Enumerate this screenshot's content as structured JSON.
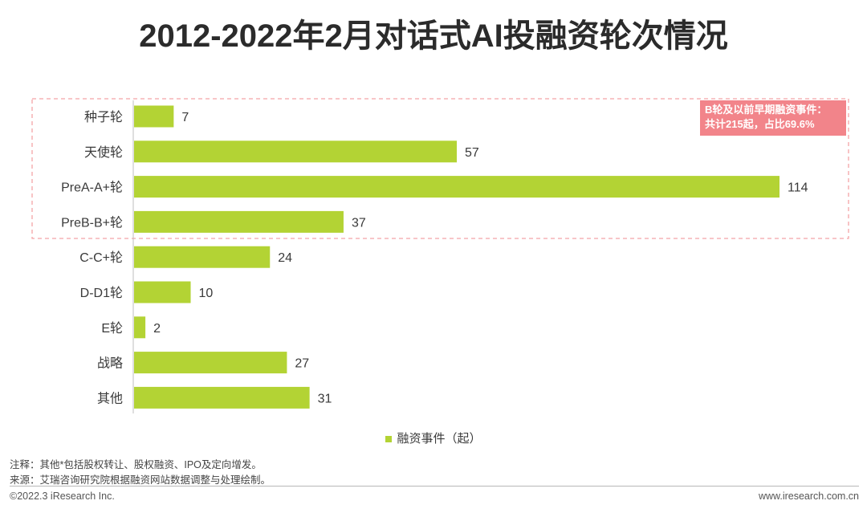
{
  "title": "2012-2022年2月对话式AI投融资轮次情况",
  "chart_data": {
    "type": "bar",
    "orientation": "horizontal",
    "categories": [
      "种子轮",
      "天使轮",
      "PreA-A+轮",
      "PreB-B+轮",
      "C-C+轮",
      "D-D1轮",
      "E轮",
      "战略",
      "其他"
    ],
    "series": [
      {
        "name": "融资事件（起）",
        "values": [
          7,
          57,
          114,
          37,
          24,
          10,
          2,
          27,
          31
        ]
      }
    ],
    "xlim": [
      0,
      114
    ],
    "grid": false,
    "legend": "bottom",
    "bar_color": "#b3d334",
    "highlight_box_color": "#f4a3a6"
  },
  "callout": {
    "line1": "B轮及以前早期融资事件：",
    "line2": "共计215起，占比69.6%"
  },
  "notes": {
    "note": "注释：其他*包括股权转让、股权融资、IPO及定向增发。",
    "source": "来源：艾瑞咨询研究院根据融资网站数据调整与处理绘制。"
  },
  "footer": {
    "left": "©2022.3 iResearch Inc.",
    "right": "www.iresearch.com.cn"
  }
}
